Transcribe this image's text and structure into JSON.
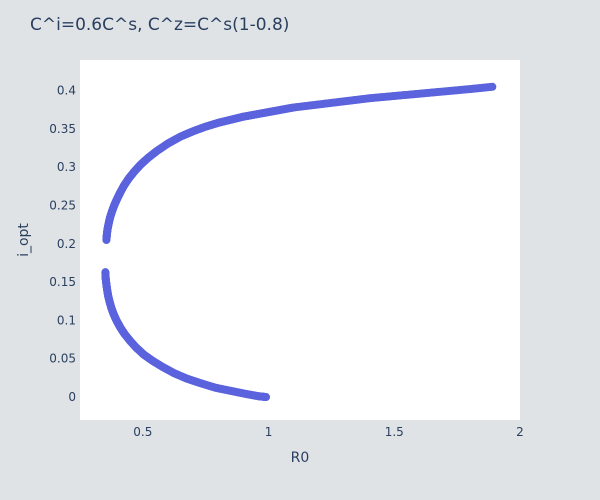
{
  "chart_data": {
    "type": "scatter",
    "title": "C^i=0.6C^s, C^z=C^s(1-0.8)",
    "xlabel": "R0",
    "ylabel": "i_opt",
    "xlim": [
      0.25,
      2.0
    ],
    "ylim": [
      -0.03,
      0.44
    ],
    "xticks": [
      0.5,
      1,
      1.5,
      2
    ],
    "xtick_labels": [
      "0.5",
      "1",
      "1.5",
      "2"
    ],
    "yticks": [
      0,
      0.05,
      0.1,
      0.15,
      0.2,
      0.25,
      0.3,
      0.35,
      0.4
    ],
    "ytick_labels": [
      "0",
      "0.05",
      "0.1",
      "0.15",
      "0.2",
      "0.25",
      "0.3",
      "0.35",
      "0.4"
    ],
    "grid": false,
    "marker_color": "#5b63dd",
    "plot_background": "#ffffff",
    "paper_background": "#dfe3e6",
    "series": [
      {
        "values": [
          {
            "x": 0.355,
            "y": 0.205
          },
          {
            "x": 0.357,
            "y": 0.213
          },
          {
            "x": 0.36,
            "y": 0.22
          },
          {
            "x": 0.365,
            "y": 0.228
          },
          {
            "x": 0.37,
            "y": 0.235
          },
          {
            "x": 0.378,
            "y": 0.243
          },
          {
            "x": 0.387,
            "y": 0.251
          },
          {
            "x": 0.398,
            "y": 0.259
          },
          {
            "x": 0.41,
            "y": 0.267
          },
          {
            "x": 0.425,
            "y": 0.276
          },
          {
            "x": 0.443,
            "y": 0.285
          },
          {
            "x": 0.465,
            "y": 0.294
          },
          {
            "x": 0.49,
            "y": 0.303
          },
          {
            "x": 0.52,
            "y": 0.312
          },
          {
            "x": 0.555,
            "y": 0.321
          },
          {
            "x": 0.6,
            "y": 0.331
          },
          {
            "x": 0.65,
            "y": 0.34
          },
          {
            "x": 0.7,
            "y": 0.347
          },
          {
            "x": 0.75,
            "y": 0.353
          },
          {
            "x": 0.8,
            "y": 0.358
          },
          {
            "x": 0.85,
            "y": 0.362
          },
          {
            "x": 0.9,
            "y": 0.366
          },
          {
            "x": 0.95,
            "y": 0.369
          },
          {
            "x": 1.0,
            "y": 0.372
          },
          {
            "x": 1.05,
            "y": 0.375
          },
          {
            "x": 1.1,
            "y": 0.378
          },
          {
            "x": 1.2,
            "y": 0.382
          },
          {
            "x": 1.3,
            "y": 0.386
          },
          {
            "x": 1.4,
            "y": 0.39
          },
          {
            "x": 1.5,
            "y": 0.393
          },
          {
            "x": 1.6,
            "y": 0.396
          },
          {
            "x": 1.7,
            "y": 0.399
          },
          {
            "x": 1.8,
            "y": 0.402
          },
          {
            "x": 1.89,
            "y": 0.405
          }
        ]
      },
      {
        "values": [
          {
            "x": 0.351,
            "y": 0.163
          },
          {
            "x": 0.352,
            "y": 0.155
          },
          {
            "x": 0.355,
            "y": 0.147
          },
          {
            "x": 0.358,
            "y": 0.14
          },
          {
            "x": 0.362,
            "y": 0.132
          },
          {
            "x": 0.368,
            "y": 0.124
          },
          {
            "x": 0.375,
            "y": 0.116
          },
          {
            "x": 0.384,
            "y": 0.108
          },
          {
            "x": 0.395,
            "y": 0.1
          },
          {
            "x": 0.41,
            "y": 0.091
          },
          {
            "x": 0.428,
            "y": 0.082
          },
          {
            "x": 0.45,
            "y": 0.073
          },
          {
            "x": 0.475,
            "y": 0.064
          },
          {
            "x": 0.505,
            "y": 0.055
          },
          {
            "x": 0.54,
            "y": 0.047
          },
          {
            "x": 0.58,
            "y": 0.039
          },
          {
            "x": 0.625,
            "y": 0.031
          },
          {
            "x": 0.675,
            "y": 0.024
          },
          {
            "x": 0.73,
            "y": 0.018
          },
          {
            "x": 0.79,
            "y": 0.012
          },
          {
            "x": 0.85,
            "y": 0.008
          },
          {
            "x": 0.91,
            "y": 0.004
          },
          {
            "x": 0.96,
            "y": 0.001
          },
          {
            "x": 0.99,
            "y": 0.0
          }
        ]
      }
    ]
  }
}
